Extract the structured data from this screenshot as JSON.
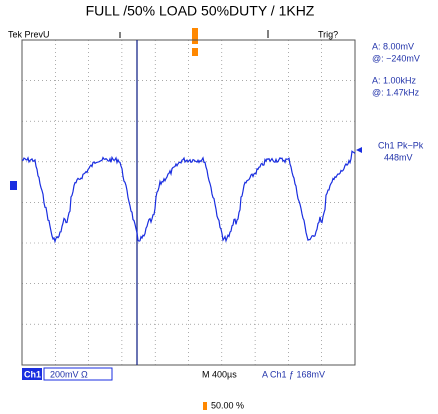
{
  "title": "FULL /50% LOAD 50%DUTY / 1KHZ",
  "top_bar": {
    "left": "Tek PrevU",
    "right": "Trig?"
  },
  "readouts": [
    "A:  8.00mV",
    "@: −240mV",
    "A:  1.00kHz",
    "@:  1.47kHz",
    "Ch1 Pk−Pk",
    "448mV"
  ],
  "status_bar": {
    "channel": "Ch1",
    "scale": "200mV Ω",
    "timebase": "M 400µs",
    "trigger": "A  Ch1  ƒ  168mV",
    "position": "50.00 %"
  }
}
